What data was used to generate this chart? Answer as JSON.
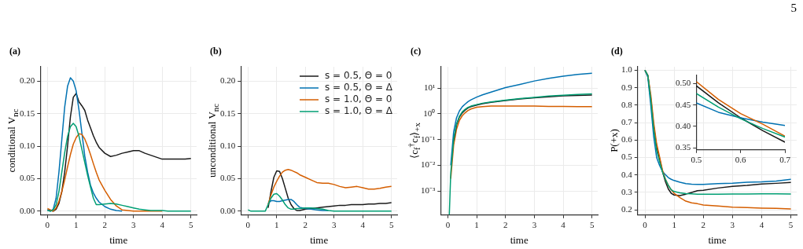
{
  "chart_data": [
    {
      "type": "line",
      "title": "(a)",
      "xlabel": "time",
      "ylabel": "conditional V$_{nc}$",
      "x": [
        0,
        0.1,
        0.2,
        0.3,
        0.4,
        0.5,
        0.6,
        0.7,
        0.8,
        0.9,
        1.0,
        1.1,
        1.2,
        1.3,
        1.4,
        1.5,
        1.6,
        1.7,
        1.8,
        2.0,
        2.2,
        2.4,
        2.6,
        2.8,
        3.0,
        3.2,
        3.4,
        3.6,
        3.8,
        4.0,
        4.2,
        4.4,
        4.6,
        4.8,
        5.0
      ],
      "series": [
        {
          "color": "#1a1a1a",
          "values": [
            0.002,
            0.001,
            0,
            0.003,
            0.012,
            0.03,
            0.06,
            0.1,
            0.145,
            0.175,
            0.181,
            0.168,
            0.162,
            0.155,
            0.14,
            0.128,
            0.116,
            0.106,
            0.098,
            0.089,
            0.084,
            0.086,
            0.089,
            0.091,
            0.093,
            0.093,
            0.089,
            0.086,
            0.083,
            0.08,
            0.08,
            0.08,
            0.08,
            0.08,
            0.081
          ]
        },
        {
          "color": "#0072b2",
          "values": [
            0.002,
            0,
            0.003,
            0.02,
            0.06,
            0.11,
            0.16,
            0.192,
            0.205,
            0.2,
            0.185,
            0.155,
            0.12,
            0.085,
            0.06,
            0.04,
            0.028,
            0.02,
            0.014,
            0.007,
            0.003,
            0.001,
            0,
            null,
            null,
            null,
            null,
            null,
            null,
            null,
            null,
            null,
            null,
            null,
            null
          ]
        },
        {
          "color": "#d55e00",
          "values": [
            0.004,
            0.002,
            0,
            0.005,
            0.015,
            0.03,
            0.048,
            0.068,
            0.087,
            0.103,
            0.113,
            0.119,
            0.118,
            0.111,
            0.1,
            0.087,
            0.073,
            0.06,
            0.048,
            0.032,
            0.018,
            0.008,
            0.002,
            0.001,
            0,
            0,
            0,
            0,
            0,
            0,
            null,
            null,
            null,
            null,
            null
          ]
        },
        {
          "color": "#009e73",
          "values": [
            0.001,
            0,
            0.002,
            0.01,
            0.03,
            0.06,
            0.09,
            0.115,
            0.13,
            0.135,
            0.13,
            0.115,
            0.095,
            0.075,
            0.055,
            0.037,
            0.02,
            0.01,
            0.01,
            0.011,
            0.012,
            0.011,
            0.009,
            0.007,
            0.005,
            0.003,
            0.002,
            0.001,
            0.001,
            0.001,
            0,
            0,
            0,
            0,
            0
          ]
        }
      ],
      "xlim": [
        -0.25,
        5.2
      ],
      "ylim": [
        -0.006,
        0.222
      ],
      "xticks": [
        0,
        1,
        2,
        3,
        4,
        5
      ],
      "yticks": [
        {
          "value": 0,
          "label": "0.00"
        },
        {
          "value": 0.05,
          "label": "0.05"
        },
        {
          "value": 0.1,
          "label": "0.10"
        },
        {
          "value": 0.15,
          "label": "0.15"
        },
        {
          "value": 0.2,
          "label": "0.20"
        }
      ],
      "grid": true
    },
    {
      "type": "line",
      "title": "(b)",
      "xlabel": "time",
      "ylabel": "unconditional V$_{nc}$",
      "x": [
        0,
        0.1,
        0.2,
        0.3,
        0.4,
        0.5,
        0.6,
        0.7,
        0.8,
        0.9,
        1.0,
        1.1,
        1.2,
        1.3,
        1.4,
        1.5,
        1.6,
        1.7,
        1.8,
        2.0,
        2.2,
        2.4,
        2.6,
        2.8,
        3.0,
        3.2,
        3.4,
        3.6,
        3.8,
        4.0,
        4.2,
        4.4,
        4.6,
        4.8,
        5.0
      ],
      "series": [
        {
          "name": "s = 0.5, Θ = 0",
          "color": "#1a1a1a",
          "values": [
            null,
            null,
            null,
            null,
            null,
            null,
            null,
            0.005,
            0.03,
            0.052,
            0.062,
            0.061,
            0.05,
            0.035,
            0.02,
            0.01,
            0.004,
            0.001,
            0.001,
            0.003,
            0.004,
            0.005,
            0.006,
            0.007,
            0.008,
            0.009,
            0.009,
            0.01,
            0.01,
            0.01,
            0.011,
            0.011,
            0.012,
            0.012,
            0.013
          ]
        },
        {
          "name": "s = 0.5, Θ = Δ",
          "color": "#0072b2",
          "values": [
            null,
            null,
            null,
            null,
            null,
            null,
            null,
            0.012,
            0.016,
            0.016,
            0.015,
            0.015,
            0.016,
            0.017,
            0.018,
            0.018,
            0.015,
            0.01,
            0.006,
            0.004,
            0.003,
            0.002,
            0.001,
            0.001,
            null,
            null,
            null,
            null,
            null,
            null,
            null,
            null,
            null,
            null,
            null
          ]
        },
        {
          "name": "s = 1.0, Θ = 0",
          "color": "#d55e00",
          "values": [
            null,
            null,
            null,
            null,
            null,
            null,
            null,
            0.01,
            0.025,
            0.037,
            0.046,
            0.054,
            0.06,
            0.063,
            0.064,
            0.063,
            0.061,
            0.059,
            0.056,
            0.052,
            0.048,
            0.044,
            0.043,
            0.043,
            0.041,
            0.038,
            0.036,
            0.037,
            0.038,
            0.036,
            0.034,
            0.034,
            0.035,
            0.037,
            0.038
          ]
        },
        {
          "name": "s = 1.0, Θ = Δ",
          "color": "#009e73",
          "values": [
            0.002,
            0,
            0,
            0,
            0,
            0,
            0,
            0.01,
            0.02,
            0.026,
            0.027,
            0.023,
            0.017,
            0.01,
            0.005,
            0.003,
            0.003,
            0.004,
            0.004,
            0.005,
            0.005,
            0.004,
            0.003,
            0.001,
            0,
            0,
            0,
            0,
            0,
            0,
            0,
            0,
            0,
            0,
            0
          ]
        }
      ],
      "xlim": [
        -0.25,
        5.2
      ],
      "ylim": [
        -0.006,
        0.222
      ],
      "xticks": [
        0,
        1,
        2,
        3,
        4,
        5
      ],
      "yticks": [
        {
          "value": 0,
          "label": "0.00"
        },
        {
          "value": 0.05,
          "label": "0.05"
        },
        {
          "value": 0.1,
          "label": "0.10"
        },
        {
          "value": 0.15,
          "label": "0.15"
        },
        {
          "value": 0.2,
          "label": "0.20"
        }
      ],
      "grid": true,
      "legend": "top right"
    },
    {
      "type": "line",
      "title": "(c)",
      "xlabel": "time",
      "ylabel": "⟨c$_{f}$$^{†}$c$_{f}$⟩$_{+x}$",
      "log": "y",
      "x": [
        0.05,
        0.1,
        0.2,
        0.3,
        0.4,
        0.5,
        0.6,
        0.7,
        0.8,
        1.0,
        1.2,
        1.5,
        2.0,
        2.5,
        3.0,
        3.5,
        4.0,
        4.5,
        5.0
      ],
      "series": [
        {
          "color": "#0072b2",
          "values": [
            null,
            0.01,
            0.2,
            0.7,
            1.3,
            1.9,
            2.4,
            3.0,
            3.5,
            4.5,
            5.5,
            7,
            10.5,
            14,
            19,
            24,
            29,
            34,
            38
          ]
        },
        {
          "color": "#d55e00",
          "values": [
            null,
            0.003,
            0.06,
            0.25,
            0.55,
            0.85,
            1.1,
            1.35,
            1.55,
            1.8,
            1.9,
            2.0,
            2.0,
            2.0,
            2.0,
            1.95,
            1.95,
            1.9,
            1.9
          ]
        },
        {
          "color": "#1a1a1a",
          "values": [
            null,
            null,
            0.09,
            0.37,
            0.75,
            1.1,
            1.4,
            1.7,
            1.9,
            2.2,
            2.5,
            2.8,
            3.3,
            3.8,
            4.2,
            4.6,
            5.0,
            5.2,
            5.4
          ]
        },
        {
          "color": "#009e73",
          "values": [
            0.00012,
            0.005,
            0.1,
            0.4,
            0.8,
            1.2,
            1.5,
            1.8,
            2.0,
            2.3,
            2.6,
            2.9,
            3.4,
            3.9,
            4.4,
            4.9,
            5.3,
            5.7,
            6.0
          ]
        }
      ],
      "xlim": [
        -0.25,
        5.2
      ],
      "ylim": [
        0.000115,
        68
      ],
      "xticks": [
        0,
        1,
        2,
        3,
        4,
        5
      ],
      "yticks": [
        {
          "value": 0.001,
          "label": "10⁻³"
        },
        {
          "value": 0.01,
          "label": "10⁻²"
        },
        {
          "value": 0.1,
          "label": "10⁻¹"
        },
        {
          "value": 1,
          "label": "10⁰"
        },
        {
          "value": 10,
          "label": "10¹"
        }
      ],
      "grid": true
    },
    {
      "type": "line",
      "title": "(d)",
      "xlabel": "time",
      "ylabel": "P(+x)",
      "annotations": [
        "5"
      ],
      "x": [
        0,
        0.1,
        0.2,
        0.3,
        0.4,
        0.5,
        0.6,
        0.7,
        0.8,
        0.9,
        1.0,
        1.2,
        1.4,
        1.6,
        1.8,
        2.0,
        2.5,
        3.0,
        3.5,
        4.0,
        4.5,
        5.0
      ],
      "series": [
        {
          "color": "#1a1a1a",
          "values": [
            1.0,
            0.97,
            0.84,
            0.68,
            0.56,
            0.495,
            0.42,
            0.363,
            0.32,
            0.295,
            0.285,
            0.282,
            0.29,
            0.3,
            0.31,
            0.312,
            0.325,
            0.335,
            0.34,
            0.348,
            0.352,
            0.357
          ]
        },
        {
          "color": "#0072b2",
          "values": [
            1.0,
            0.96,
            0.8,
            0.62,
            0.5,
            0.455,
            0.42,
            0.402,
            0.385,
            0.375,
            0.368,
            0.358,
            0.35,
            0.347,
            0.346,
            0.346,
            0.35,
            0.353,
            0.358,
            0.36,
            0.365,
            0.375
          ]
        },
        {
          "color": "#d55e00",
          "values": [
            1.0,
            0.97,
            0.86,
            0.7,
            0.58,
            0.505,
            0.428,
            0.377,
            0.34,
            0.315,
            0.295,
            0.27,
            0.25,
            0.24,
            0.235,
            0.228,
            0.222,
            0.215,
            0.213,
            0.21,
            0.208,
            0.205
          ]
        },
        {
          "color": "#009e73",
          "values": [
            1.0,
            0.97,
            0.83,
            0.66,
            0.54,
            0.477,
            0.418,
            0.375,
            0.34,
            0.315,
            0.305,
            0.297,
            0.293,
            0.292,
            0.29,
            0.29,
            0.29,
            0.291,
            0.291,
            0.292,
            0.292,
            0.291
          ]
        }
      ],
      "xlim": [
        -0.25,
        5.2
      ],
      "ylim": [
        0.17,
        1.02
      ],
      "xticks": [
        0,
        1,
        2,
        3,
        4,
        5
      ],
      "yticks": [
        0.2,
        0.3,
        0.4,
        0.5,
        0.6,
        0.7,
        0.8,
        0.9,
        {
          "value": 1,
          "label": "1.0"
        }
      ],
      "grid": true
    },
    {
      "type": "line",
      "x": [
        0.5,
        0.55,
        0.6,
        0.65,
        0.7
      ],
      "series": [
        {
          "color": "#1a1a1a",
          "values": [
            0.495,
            0.455,
            0.42,
            0.39,
            0.363
          ]
        },
        {
          "color": "#0072b2",
          "values": [
            0.455,
            0.433,
            0.42,
            0.41,
            0.402
          ]
        },
        {
          "color": "#d55e00",
          "values": [
            0.505,
            0.463,
            0.43,
            0.405,
            0.377
          ]
        },
        {
          "color": "#009e73",
          "values": [
            0.477,
            0.445,
            0.418,
            0.395,
            0.375
          ]
        }
      ],
      "xlim": [
        0.5,
        0.7
      ],
      "ylim": [
        0.345,
        0.52
      ],
      "xticks": [
        0.5,
        0.6,
        0.7
      ],
      "yticks": [
        {
          "value": 0.35,
          "label": "0.35"
        },
        {
          "value": 0.4,
          "label": "0.40"
        },
        {
          "value": 0.45,
          "label": "0.45"
        },
        {
          "value": 0.5,
          "label": "0.50"
        }
      ]
    }
  ]
}
